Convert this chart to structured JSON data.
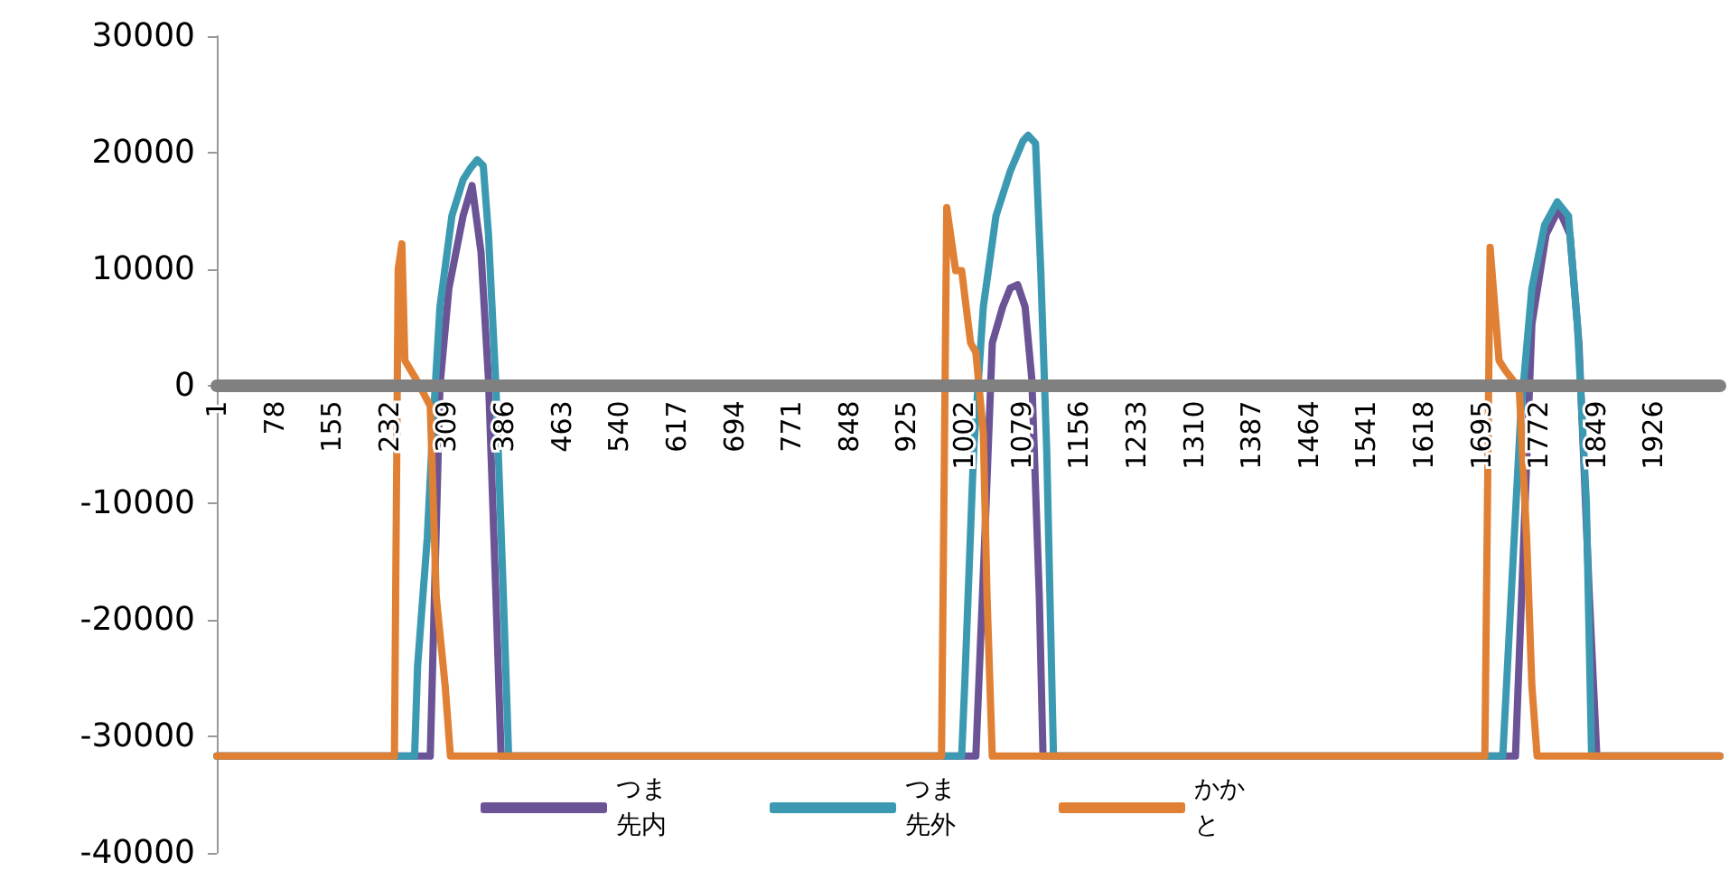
{
  "chart_data": {
    "type": "line",
    "xlim": [
      1,
      2015
    ],
    "xticks": [
      1,
      78,
      155,
      232,
      309,
      386,
      463,
      540,
      617,
      694,
      771,
      848,
      925,
      1002,
      1079,
      1156,
      1233,
      1310,
      1387,
      1464,
      1541,
      1618,
      1695,
      1772,
      1849,
      1926
    ],
    "ylim": [
      -40000,
      30000
    ],
    "yticks": [
      -40000,
      -30000,
      -20000,
      -10000,
      0,
      10000,
      20000,
      30000
    ],
    "legend": "bottom",
    "series": [
      {
        "name": "つま先内",
        "color": "#6b5496",
        "x": [
          1,
          287,
          292,
          300,
          312,
          331,
          343,
          355,
          365,
          375,
          382,
          1018,
          1030,
          1040,
          1054,
          1064,
          1074,
          1084,
          1093,
          1103,
          1108,
          1741,
          1751,
          1763,
          1782,
          1799,
          1814,
          1826,
          1840,
          1850,
          2015
        ],
        "values": [
          -31700,
          -31700,
          -19500,
          0,
          8400,
          14600,
          17200,
          11500,
          600,
          -18000,
          -31700,
          -31700,
          -13000,
          3700,
          6800,
          8400,
          8700,
          6800,
          600,
          -18000,
          -31700,
          -31700,
          -15000,
          5300,
          13000,
          15200,
          13000,
          3700,
          -18000,
          -31700,
          -31700
        ]
      },
      {
        "name": "つま先外",
        "color": "#3b9ab1",
        "x": [
          1,
          266,
          270,
          283,
          290,
          300,
          316,
          331,
          341,
          350,
          358,
          365,
          375,
          385,
          392,
          999,
          1003,
          1015,
          1028,
          1045,
          1064,
          1081,
          1088,
          1098,
          1105,
          1113,
          1122,
          1724,
          1734,
          1748,
          1763,
          1780,
          1797,
          1812,
          1824,
          1836,
          1843,
          2015
        ],
        "values": [
          -31700,
          -31700,
          -24000,
          -13000,
          -4000,
          6800,
          14600,
          17700,
          18700,
          19400,
          18900,
          13000,
          0,
          -18000,
          -31700,
          -31700,
          -25700,
          -5600,
          6800,
          14600,
          18400,
          21000,
          21500,
          20800,
          9900,
          -5600,
          -31700,
          -31700,
          -19500,
          -2500,
          8400,
          13800,
          15800,
          14600,
          5300,
          -10000,
          -31700,
          -31700
        ]
      },
      {
        "name": "かかと",
        "color": "#e08035",
        "x": [
          1,
          239,
          244,
          249,
          253,
          268,
          287,
          295,
          307,
          314,
          972,
          979,
          991,
          999,
          1011,
          1018,
          1028,
          1033,
          1040,
          1700,
          1707,
          1719,
          1727,
          1746,
          1756,
          1763,
          1770,
          2015
        ],
        "values": [
          -31700,
          -31700,
          10000,
          12200,
          2200,
          600,
          -1700,
          -18000,
          -25700,
          -31700,
          -31700,
          15300,
          9900,
          9900,
          3700,
          2900,
          -4000,
          -18000,
          -31700,
          -31700,
          11900,
          2200,
          1400,
          -200,
          -13000,
          -25700,
          -31700,
          -31700
        ]
      }
    ]
  }
}
